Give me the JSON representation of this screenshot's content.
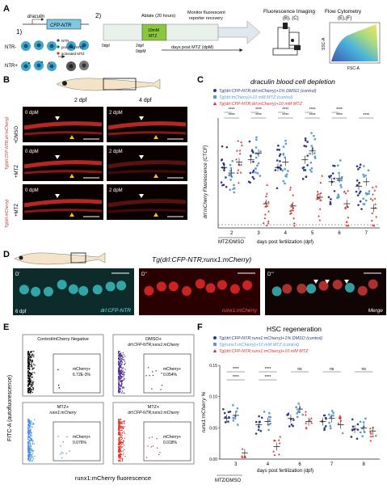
{
  "panel_letters": {
    "a": "A",
    "b": "B",
    "c": "C",
    "d": "D",
    "e": "E",
    "f": "F"
  },
  "schematic": {
    "step1": "1)",
    "step2": "2)",
    "gene_promoter": "draculin",
    "transgene": "CFP-NTR",
    "ntr_minus": "NTR-",
    "ntr_plus": "NTR+",
    "legend": [
      "NTR",
      "pro-drug MTZ",
      "activated MTZ"
    ],
    "ablate_label": "Ablate (20 hours)",
    "mtz_box": [
      "10mM",
      "MTZ"
    ],
    "monitor_label": [
      "Monitor fluorescent",
      "reporter recovery"
    ],
    "timeline_ticks": [
      "0dpf",
      "2dpf",
      "0dpM"
    ],
    "timeline_arrow": "days post MTZ (dpM)",
    "imaging_label": "Fluorescence Imaging",
    "imaging_sub": "(B), (C)",
    "flow_label": "Flow Cytometry",
    "flow_sub": "(E),(F)",
    "flow_y": "SSC-A",
    "flow_x": "FSC-A"
  },
  "panel_b": {
    "col_headers": [
      "2 dpf",
      "4 dpf"
    ],
    "rows": [
      {
        "side": "+DMSO",
        "left": "0 dpM",
        "right": "2 dpM"
      },
      {
        "side": "+MTZ",
        "left": "0 dpM",
        "right": "2 dpM"
      },
      {
        "side": "+MTZ",
        "left": "0 dpM",
        "right": "2 dpM"
      }
    ],
    "group_label_1": "Tg(drl:CFP-NTR;drl:mCherry)",
    "group_label_2": "Tg(drl:mCherry)"
  },
  "panel_c": {
    "title": "draculin blood cell depletion",
    "legend": [
      {
        "label": "Tg(drl:CFP-NTR;drl:mCherry)+1% DMSO (control)",
        "color": "#2b3a8c"
      },
      {
        "label": "Tg(drl:mCherry)+10 mM MTZ (control)",
        "color": "#5b9bd5"
      },
      {
        "label": "Tg(drl:CFP-NTR;drl:mCherry)+10 mM MTZ",
        "color": "#e0322b"
      }
    ],
    "ylabel": "drl:mCherry Fluorescence (CTCF)",
    "xlabel": "days post fertilization (dpf)",
    "treatment_label": "MTZ/DMSO",
    "significance": [
      "****",
      "****",
      "****",
      "****",
      "****",
      "****",
      "****",
      "****",
      "****",
      "****",
      "****",
      "*",
      "*",
      "**",
      "**"
    ]
  },
  "panel_d": {
    "title": "Tg(drl:CFP-NTR;runx1:mCherry)",
    "sub": [
      "D'",
      "D''",
      "D'''"
    ],
    "age": "6 dpf",
    "captions": [
      "drl:CFP-NTR",
      "runx1:mCherry",
      "Merge"
    ]
  },
  "panel_e": {
    "ylabel": "FITC-A (autofluorescence)",
    "xlabel": "runx1:mCherry fluorescence",
    "plots": [
      {
        "title": "Control/mCherry Negative",
        "gate": "mCherry+",
        "pct": "6.72E-3%",
        "color": "#000000"
      },
      {
        "title": "DMSO+",
        "title2": "drl:CFP-NTR;runx1:mCherry",
        "gate": "mCherry+",
        "pct": "0.054%",
        "color": "#4b2a8c"
      },
      {
        "title": "MTZ+",
        "title2": "runx1:mCherry",
        "gate": "mCherry+",
        "pct": "0.076%",
        "color": "#4a90d9"
      },
      {
        "title": "MTZ+",
        "title2": "drl:CFP-NTR;runx1:mCherry",
        "gate": "mCherry+",
        "pct": "0.018%",
        "color": "#e0322b"
      }
    ]
  },
  "panel_f": {
    "title": "HSC regeneration",
    "legend": [
      {
        "label": "Tg(drl:CFP-NTR;runx1:mCherry)+1% DMSO (control)",
        "color": "#2b3a8c"
      },
      {
        "label": "Tg(runx1:mCherry)+10 mM MTZ (control)",
        "color": "#5b9bd5"
      },
      {
        "label": "Tg(drl:CFP-NTR;runx1:mCherry)+10 mM MTZ",
        "color": "#e0322b"
      }
    ],
    "ylabel": "runx1:mCherry %",
    "xlabel": "days post fertilization (dpf)",
    "treatment_label": "MTZ/DMSO",
    "sig": [
      "****",
      "****",
      "****",
      "****",
      "ns",
      "ns",
      "ns"
    ]
  },
  "chart_data": [
    {
      "type": "scatter",
      "id": "C",
      "title": "draculin blood cell depletion",
      "ylabel": "drl:mCherry Fluorescence (CTCF)",
      "xlabel": "days post fertilization (dpf)",
      "categories": [
        "2",
        "3",
        "4",
        "5",
        "6",
        "7"
      ],
      "series": [
        {
          "name": "Tg(drl:CFP-NTR;drl:mCherry)+1% DMSO (control)",
          "color": "#2b3a8c",
          "means": [
            0.55,
            0.62,
            0.55,
            0.62,
            0.42,
            0.38
          ]
        },
        {
          "name": "Tg(drl:mCherry)+10 mM MTZ (control)",
          "color": "#5b9bd5",
          "means": [
            0.5,
            0.68,
            0.6,
            0.7,
            0.45,
            0.42
          ]
        },
        {
          "name": "Tg(drl:CFP-NTR;drl:mCherry)+10 mM MTZ",
          "color": "#e0322b",
          "means": [
            0.6,
            0.22,
            0.2,
            0.28,
            0.22,
            0.18
          ]
        }
      ]
    },
    {
      "type": "scatter",
      "id": "F",
      "title": "HSC regeneration",
      "ylabel": "runx1:mCherry %",
      "xlabel": "days post fertilization (dpf)",
      "categories": [
        "3",
        "4",
        "6",
        "7",
        "8"
      ],
      "yticks": [
        "0.00",
        "0.05",
        "0.10",
        "0.15"
      ],
      "ylim": [
        0,
        0.15
      ],
      "series": [
        {
          "name": "Tg(drl:CFP-NTR;runx1:mCherry)+1% DMSO (control)",
          "color": "#2b3a8c",
          "means": [
            0.065,
            0.055,
            0.065,
            0.06,
            0.048
          ]
        },
        {
          "name": "Tg(runx1:mCherry)+10 mM MTZ (control)",
          "color": "#5b9bd5",
          "means": [
            0.07,
            0.06,
            0.08,
            0.065,
            0.05
          ]
        },
        {
          "name": "Tg(drl:CFP-NTR;runx1:mCherry)+10 mM MTZ",
          "color": "#e0322b",
          "means": [
            0.01,
            0.02,
            0.06,
            0.055,
            0.045
          ]
        }
      ]
    }
  ]
}
